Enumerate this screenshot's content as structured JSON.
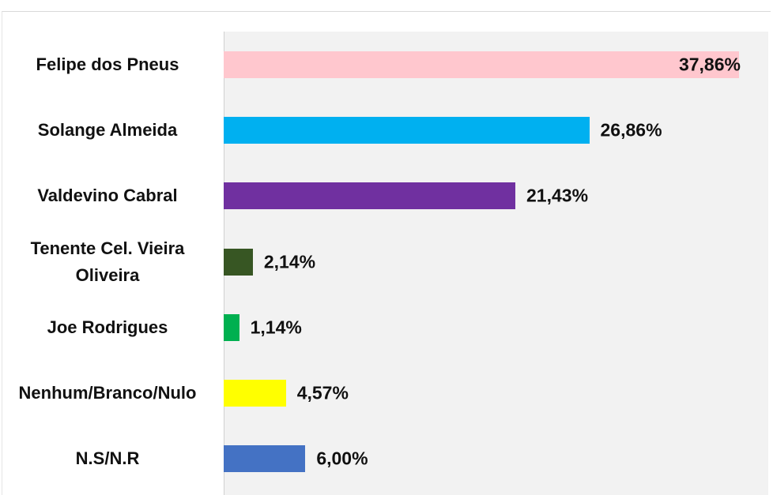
{
  "chart_data": {
    "type": "bar",
    "orientation": "horizontal",
    "categories": [
      "Felipe dos Pneus",
      "Solange Almeida",
      "Valdevino Cabral",
      "Tenente Cel. Vieira Oliveira",
      "Joe Rodrigues",
      "Nenhum/Branco/Nulo",
      "N.S/N.R"
    ],
    "values": [
      37.86,
      26.86,
      21.43,
      2.14,
      1.14,
      4.57,
      6.0
    ],
    "value_labels": [
      "37,86%",
      "26,86%",
      "21,43%",
      "2,14%",
      "1,14%",
      "4,57%",
      "6,00%"
    ],
    "colors": [
      "#ffc7ce",
      "#00b0f0",
      "#7030a0",
      "#375623",
      "#00b050",
      "#ffff00",
      "#4472c4"
    ]
  }
}
